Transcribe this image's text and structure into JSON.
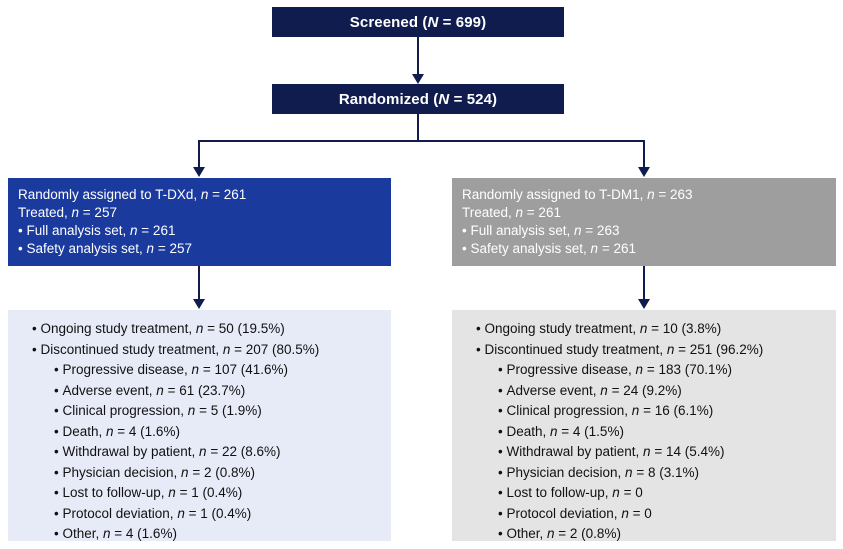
{
  "colors": {
    "navy": "#101c4e",
    "armBlue": "#1a3a9e",
    "armGray": "#9e9e9e",
    "paleBlue": "#e7ebf8",
    "paleGray": "#e4e4e4"
  },
  "screened": {
    "label": "Screened (N = 699)"
  },
  "randomized": {
    "label": "Randomized (N = 524)"
  },
  "arms": [
    {
      "name": "T-DXd",
      "header": {
        "line1": "Randomly assigned to T-DXd, n = 261",
        "line2": "Treated, n = 257",
        "bullet1": "Full analysis set, n = 261",
        "bullet2": "Safety analysis set, n = 257"
      },
      "outcomes": {
        "ongoing": "Ongoing study treatment, n = 50 (19.5%)",
        "discontinued": "Discontinued study treatment, n = 207 (80.5%)",
        "sub": [
          "Progressive disease, n = 107 (41.6%)",
          "Adverse event, n = 61 (23.7%)",
          "Clinical progression, n = 5 (1.9%)",
          "Death, n = 4 (1.6%)",
          "Withdrawal by patient, n = 22 (8.6%)",
          "Physician decision, n = 2 (0.8%)",
          "Lost to follow-up, n = 1 (0.4%)",
          "Protocol deviation, n = 1 (0.4%)",
          "Other, n = 4 (1.6%)"
        ]
      }
    },
    {
      "name": "T-DM1",
      "header": {
        "line1": "Randomly assigned to T-DM1, n = 263",
        "line2": "Treated, n = 261",
        "bullet1": "Full analysis set, n = 263",
        "bullet2": "Safety analysis set, n = 261"
      },
      "outcomes": {
        "ongoing": "Ongoing study treatment, n = 10 (3.8%)",
        "discontinued": "Discontinued study treatment, n = 251 (96.2%)",
        "sub": [
          "Progressive disease, n = 183 (70.1%)",
          "Adverse event, n = 24 (9.2%)",
          "Clinical progression, n = 16 (6.1%)",
          "Death, n = 4 (1.5%)",
          "Withdrawal by patient, n = 14 (5.4%)",
          "Physician decision, n = 8 (3.1%)",
          "Lost to follow-up, n = 0",
          "Protocol deviation, n = 0",
          "Other, n = 2 (0.8%)"
        ]
      }
    }
  ]
}
